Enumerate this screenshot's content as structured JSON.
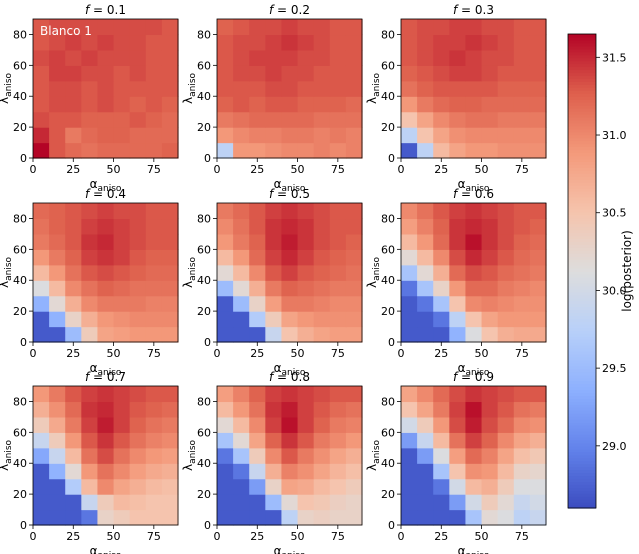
{
  "figure": {
    "annotation": "Blanco 1",
    "colorbar": {
      "label": "log(posterior)",
      "range": [
        28.6,
        31.65
      ],
      "ticks": [
        29.0,
        29.5,
        30.0,
        30.5,
        31.0,
        31.5
      ],
      "tick_labels": [
        "29.0",
        "29.5",
        "30.0",
        "30.5",
        "31.0",
        "31.5"
      ],
      "colormap": "coolwarm"
    }
  },
  "chart_data": {
    "type": "heatmap",
    "xlabel": "α_aniso",
    "ylabel": "λ_aniso",
    "xticks": [
      0,
      25,
      50,
      75
    ],
    "xtick_labels": [
      "0",
      "25",
      "50",
      "75"
    ],
    "yticks": [
      0,
      20,
      40,
      60,
      80
    ],
    "ytick_labels": [
      "0",
      "20",
      "40",
      "60",
      "80"
    ],
    "xlim": [
      0,
      90
    ],
    "ylim": [
      0,
      90
    ],
    "grid_x": [
      0,
      10,
      20,
      30,
      40,
      50,
      60,
      70,
      80
    ],
    "grid_y": [
      0,
      10,
      20,
      30,
      40,
      50,
      60,
      70,
      80
    ],
    "panels": [
      {
        "title": "f = 0.1",
        "annotation": "Blanco 1",
        "z": [
          [
            31.65,
            31.3,
            31.2,
            31.15,
            31.2,
            31.2,
            31.2,
            31.2,
            31.25
          ],
          [
            31.5,
            31.3,
            31.1,
            31.2,
            31.25,
            31.25,
            31.2,
            31.2,
            31.2
          ],
          [
            31.35,
            31.3,
            31.3,
            31.25,
            31.25,
            31.25,
            31.3,
            31.25,
            31.2
          ],
          [
            31.3,
            31.35,
            31.35,
            31.3,
            31.35,
            31.3,
            31.25,
            31.3,
            31.25
          ],
          [
            31.3,
            31.35,
            31.35,
            31.3,
            31.35,
            31.3,
            31.3,
            31.3,
            31.3
          ],
          [
            31.3,
            31.4,
            31.4,
            31.35,
            31.35,
            31.3,
            31.35,
            31.3,
            31.3
          ],
          [
            31.35,
            31.4,
            31.35,
            31.4,
            31.35,
            31.35,
            31.35,
            31.3,
            31.3
          ],
          [
            31.3,
            31.35,
            31.4,
            31.35,
            31.4,
            31.35,
            31.35,
            31.3,
            31.3
          ],
          [
            31.3,
            31.35,
            31.35,
            31.35,
            31.35,
            31.35,
            31.35,
            31.35,
            31.3
          ]
        ]
      },
      {
        "title": "f = 0.2",
        "z": [
          [
            29.8,
            30.9,
            30.9,
            30.95,
            31.0,
            31.0,
            31.05,
            31.0,
            31.05
          ],
          [
            30.9,
            31.0,
            31.05,
            31.05,
            31.1,
            31.1,
            31.05,
            31.1,
            31.05
          ],
          [
            31.1,
            31.15,
            31.2,
            31.2,
            31.2,
            31.2,
            31.15,
            31.15,
            31.15
          ],
          [
            31.25,
            31.3,
            31.25,
            31.3,
            31.3,
            31.25,
            31.25,
            31.25,
            31.2
          ],
          [
            31.3,
            31.3,
            31.3,
            31.35,
            31.35,
            31.3,
            31.3,
            31.3,
            31.3
          ],
          [
            31.3,
            31.35,
            31.35,
            31.4,
            31.35,
            31.35,
            31.3,
            31.3,
            31.3
          ],
          [
            31.3,
            31.35,
            31.4,
            31.4,
            31.4,
            31.35,
            31.35,
            31.3,
            31.3
          ],
          [
            31.3,
            31.35,
            31.35,
            31.4,
            31.45,
            31.4,
            31.35,
            31.3,
            31.3
          ],
          [
            31.25,
            31.3,
            31.35,
            31.35,
            31.4,
            31.35,
            31.35,
            31.3,
            31.3
          ]
        ]
      },
      {
        "title": "f = 0.3",
        "z": [
          [
            28.7,
            29.8,
            30.6,
            30.8,
            30.9,
            30.9,
            30.95,
            30.95,
            30.95
          ],
          [
            29.8,
            30.5,
            30.8,
            30.95,
            31.0,
            31.0,
            31.0,
            31.0,
            31.0
          ],
          [
            30.5,
            30.8,
            31.0,
            31.1,
            31.15,
            31.15,
            31.1,
            31.1,
            31.1
          ],
          [
            30.9,
            31.1,
            31.2,
            31.25,
            31.25,
            31.2,
            31.2,
            31.2,
            31.2
          ],
          [
            31.15,
            31.25,
            31.3,
            31.3,
            31.3,
            31.3,
            31.25,
            31.25,
            31.25
          ],
          [
            31.25,
            31.3,
            31.35,
            31.4,
            31.4,
            31.35,
            31.3,
            31.3,
            31.3
          ],
          [
            31.3,
            31.35,
            31.4,
            31.45,
            31.4,
            31.35,
            31.35,
            31.3,
            31.3
          ],
          [
            31.3,
            31.35,
            31.4,
            31.4,
            31.45,
            31.4,
            31.35,
            31.3,
            31.3
          ],
          [
            31.3,
            31.35,
            31.35,
            31.4,
            31.4,
            31.35,
            31.35,
            31.3,
            31.3
          ]
        ]
      },
      {
        "title": "f = 0.4",
        "z": [
          [
            28.7,
            28.7,
            29.5,
            30.4,
            30.8,
            30.85,
            30.9,
            30.9,
            30.9
          ],
          [
            28.7,
            29.4,
            30.3,
            30.7,
            30.9,
            30.95,
            31.0,
            31.0,
            31.0
          ],
          [
            29.4,
            30.2,
            30.7,
            31.0,
            31.1,
            31.1,
            31.1,
            31.05,
            31.05
          ],
          [
            30.1,
            30.6,
            31.0,
            31.15,
            31.25,
            31.2,
            31.15,
            31.15,
            31.15
          ],
          [
            30.6,
            30.9,
            31.15,
            31.3,
            31.35,
            31.3,
            31.25,
            31.2,
            31.2
          ],
          [
            30.9,
            31.1,
            31.25,
            31.4,
            31.45,
            31.4,
            31.3,
            31.25,
            31.25
          ],
          [
            31.1,
            31.2,
            31.3,
            31.45,
            31.5,
            31.4,
            31.35,
            31.3,
            31.3
          ],
          [
            31.15,
            31.25,
            31.3,
            31.4,
            31.45,
            31.4,
            31.35,
            31.3,
            31.3
          ],
          [
            31.2,
            31.25,
            31.3,
            31.35,
            31.4,
            31.35,
            31.35,
            31.3,
            31.3
          ]
        ]
      },
      {
        "title": "f = 0.5",
        "z": [
          [
            28.7,
            28.7,
            28.7,
            29.9,
            30.5,
            30.7,
            30.8,
            30.85,
            30.85
          ],
          [
            28.7,
            28.7,
            29.7,
            30.4,
            30.8,
            30.9,
            30.95,
            30.95,
            30.95
          ],
          [
            28.7,
            29.5,
            30.3,
            30.85,
            31.1,
            31.1,
            31.05,
            31.0,
            31.0
          ],
          [
            29.5,
            30.2,
            30.7,
            31.1,
            31.25,
            31.2,
            31.15,
            31.1,
            31.1
          ],
          [
            30.2,
            30.6,
            31.0,
            31.3,
            31.4,
            31.3,
            31.25,
            31.2,
            31.15
          ],
          [
            30.6,
            30.9,
            31.2,
            31.4,
            31.5,
            31.4,
            31.3,
            31.25,
            31.2
          ],
          [
            30.9,
            31.1,
            31.25,
            31.45,
            31.55,
            31.45,
            31.35,
            31.3,
            31.25
          ],
          [
            31.0,
            31.15,
            31.3,
            31.45,
            31.5,
            31.45,
            31.35,
            31.3,
            31.3
          ],
          [
            31.1,
            31.2,
            31.3,
            31.4,
            31.45,
            31.4,
            31.35,
            31.3,
            31.3
          ]
        ]
      },
      {
        "title": "f = 0.6",
        "z": [
          [
            28.7,
            28.7,
            28.7,
            29.4,
            30.1,
            30.5,
            30.7,
            30.75,
            30.75
          ],
          [
            28.7,
            28.7,
            28.9,
            29.8,
            30.5,
            30.8,
            30.9,
            30.9,
            30.9
          ],
          [
            28.7,
            28.9,
            29.6,
            30.5,
            31.0,
            31.05,
            31.0,
            30.95,
            30.95
          ],
          [
            28.9,
            29.6,
            30.3,
            30.9,
            31.2,
            31.2,
            31.1,
            31.05,
            31.0
          ],
          [
            29.6,
            30.2,
            30.7,
            31.2,
            31.35,
            31.3,
            31.2,
            31.15,
            31.1
          ],
          [
            30.2,
            30.6,
            31.0,
            31.35,
            31.5,
            31.4,
            31.3,
            31.2,
            31.15
          ],
          [
            30.6,
            30.9,
            31.2,
            31.45,
            31.6,
            31.45,
            31.35,
            31.25,
            31.2
          ],
          [
            30.85,
            31.05,
            31.25,
            31.45,
            31.5,
            31.45,
            31.35,
            31.3,
            31.25
          ],
          [
            31.0,
            31.15,
            31.3,
            31.4,
            31.45,
            31.4,
            31.35,
            31.3,
            31.3
          ]
        ]
      },
      {
        "title": "f = 0.7",
        "z": [
          [
            28.7,
            28.7,
            28.7,
            28.9,
            30.3,
            30.4,
            30.5,
            30.5,
            30.5
          ],
          [
            28.7,
            28.7,
            28.7,
            29.9,
            30.4,
            30.6,
            30.55,
            30.5,
            30.5
          ],
          [
            28.7,
            28.7,
            29.7,
            30.6,
            31.0,
            30.8,
            30.7,
            30.6,
            30.55
          ],
          [
            28.7,
            29.4,
            30.2,
            30.9,
            31.15,
            31.0,
            30.85,
            30.75,
            30.7
          ],
          [
            29.3,
            29.9,
            30.6,
            31.15,
            31.35,
            31.15,
            31.0,
            30.9,
            30.85
          ],
          [
            29.9,
            30.4,
            30.9,
            31.3,
            31.45,
            31.3,
            31.15,
            31.05,
            31.0
          ],
          [
            30.4,
            30.75,
            31.1,
            31.4,
            31.55,
            31.4,
            31.25,
            31.15,
            31.1
          ],
          [
            30.7,
            30.95,
            31.2,
            31.45,
            31.5,
            31.4,
            31.3,
            31.25,
            31.2
          ],
          [
            30.9,
            31.1,
            31.3,
            31.4,
            31.45,
            31.4,
            31.35,
            31.3,
            31.3
          ]
        ]
      },
      {
        "title": "f = 0.8",
        "z": [
          [
            28.7,
            28.7,
            28.7,
            28.7,
            29.8,
            30.3,
            30.35,
            30.3,
            30.3
          ],
          [
            28.7,
            28.7,
            28.7,
            29.5,
            30.2,
            30.5,
            30.45,
            30.35,
            30.3
          ],
          [
            28.7,
            28.7,
            29.2,
            30.3,
            30.8,
            30.75,
            30.6,
            30.5,
            30.4
          ],
          [
            28.7,
            28.9,
            29.9,
            30.7,
            31.05,
            30.95,
            30.8,
            30.65,
            30.55
          ],
          [
            28.9,
            29.6,
            30.4,
            31.0,
            31.3,
            31.1,
            30.95,
            30.8,
            30.7
          ],
          [
            29.6,
            30.2,
            30.8,
            31.25,
            31.45,
            31.3,
            31.1,
            31.0,
            30.9
          ],
          [
            30.2,
            30.6,
            31.0,
            31.4,
            31.6,
            31.4,
            31.25,
            31.1,
            31.05
          ],
          [
            30.6,
            30.9,
            31.15,
            31.45,
            31.55,
            31.4,
            31.3,
            31.2,
            31.15
          ],
          [
            30.85,
            31.05,
            31.25,
            31.4,
            31.45,
            31.4,
            31.35,
            31.3,
            31.3
          ]
        ]
      },
      {
        "title": "f = 0.9",
        "z": [
          [
            28.7,
            28.7,
            28.7,
            28.7,
            29.6,
            30.2,
            30.1,
            29.8,
            29.9
          ],
          [
            28.7,
            28.7,
            28.7,
            29.2,
            30.0,
            30.4,
            30.2,
            29.9,
            30.0
          ],
          [
            28.7,
            28.7,
            28.9,
            30.0,
            30.6,
            30.7,
            30.4,
            30.1,
            30.1
          ],
          [
            28.7,
            28.7,
            29.6,
            30.5,
            30.95,
            30.9,
            30.6,
            30.3,
            30.25
          ],
          [
            28.7,
            29.2,
            30.1,
            30.85,
            31.2,
            31.05,
            30.8,
            30.55,
            30.45
          ],
          [
            29.2,
            29.9,
            30.6,
            31.15,
            31.4,
            31.25,
            31.0,
            30.8,
            30.7
          ],
          [
            30.0,
            30.4,
            30.9,
            31.35,
            31.55,
            31.35,
            31.2,
            31.0,
            30.95
          ],
          [
            30.5,
            30.8,
            31.1,
            31.4,
            31.6,
            31.4,
            31.3,
            31.15,
            31.1
          ],
          [
            30.8,
            31.0,
            31.2,
            31.35,
            31.45,
            31.4,
            31.35,
            31.3,
            31.3
          ]
        ]
      }
    ]
  }
}
